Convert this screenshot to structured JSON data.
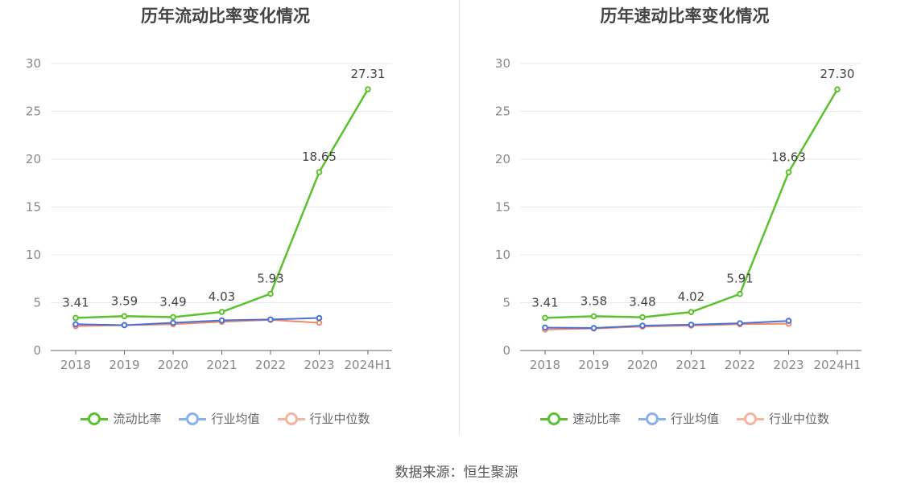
{
  "colors": {
    "primary": "#5bc12d",
    "industry_avg": "#4a72d6",
    "industry_median": "#f0876a",
    "legend_avg": "#8ab0f0",
    "legend_median": "#f6b3a0"
  },
  "source": "数据来源：恒生聚源",
  "chart_data": [
    {
      "type": "line",
      "title": "历年流动比率变化情况",
      "categories": [
        "2018",
        "2019",
        "2020",
        "2021",
        "2022",
        "2023",
        "2024H1"
      ],
      "yticks": [
        "0",
        "5",
        "10",
        "15",
        "20",
        "25",
        "30"
      ],
      "ylim": [
        0,
        30
      ],
      "grid": true,
      "legend_position": "bottom",
      "series": [
        {
          "name": "流动比率",
          "values": [
            3.41,
            3.59,
            3.49,
            4.03,
            5.93,
            18.65,
            27.31
          ],
          "labels": [
            "3.41",
            "3.59",
            "3.49",
            "4.03",
            "5.93",
            "18.65",
            "27.31"
          ]
        },
        {
          "name": "行业均值",
          "values": [
            2.75,
            2.65,
            2.9,
            3.15,
            3.25,
            3.4,
            null
          ]
        },
        {
          "name": "行业中位数",
          "values": [
            2.55,
            2.65,
            2.75,
            3.0,
            3.2,
            2.9,
            null
          ]
        }
      ]
    },
    {
      "type": "line",
      "title": "历年速动比率变化情况",
      "categories": [
        "2018",
        "2019",
        "2020",
        "2021",
        "2022",
        "2023",
        "2024H1"
      ],
      "yticks": [
        "0",
        "5",
        "10",
        "15",
        "20",
        "25",
        "30"
      ],
      "ylim": [
        0,
        30
      ],
      "grid": true,
      "legend_position": "bottom",
      "series": [
        {
          "name": "速动比率",
          "values": [
            3.41,
            3.58,
            3.48,
            4.02,
            5.91,
            18.63,
            27.3
          ],
          "labels": [
            "3.41",
            "3.58",
            "3.48",
            "4.02",
            "5.91",
            "18.63",
            "27.30"
          ]
        },
        {
          "name": "行业均值",
          "values": [
            2.4,
            2.35,
            2.6,
            2.7,
            2.85,
            3.1,
            null
          ]
        },
        {
          "name": "行业中位数",
          "values": [
            2.2,
            2.3,
            2.5,
            2.6,
            2.75,
            2.8,
            null
          ]
        }
      ]
    }
  ]
}
